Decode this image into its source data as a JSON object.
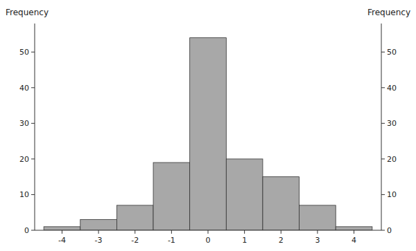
{
  "chart_data": {
    "type": "histogram",
    "bins": [
      -4.5,
      -3.5,
      -2.5,
      -1.5,
      -0.5,
      0.5,
      1.5,
      2.5,
      3.5,
      4.5
    ],
    "values": [
      1,
      3,
      7,
      19,
      54,
      20,
      15,
      7,
      1
    ],
    "color": "#a8a8a8",
    "xlim": [
      -4.75,
      4.75
    ],
    "xticks": [
      -4,
      -3,
      -2,
      -1,
      0,
      1,
      2,
      3,
      4
    ],
    "ylim": [
      0,
      58
    ],
    "yticks": [
      0,
      10,
      20,
      30,
      40,
      50
    ],
    "y2lim": [
      0,
      58
    ],
    "y2ticks": [
      0,
      10,
      20,
      30,
      40,
      50
    ],
    "ylabel": "Frequency",
    "y2label": "Frequency",
    "grid": false
  }
}
